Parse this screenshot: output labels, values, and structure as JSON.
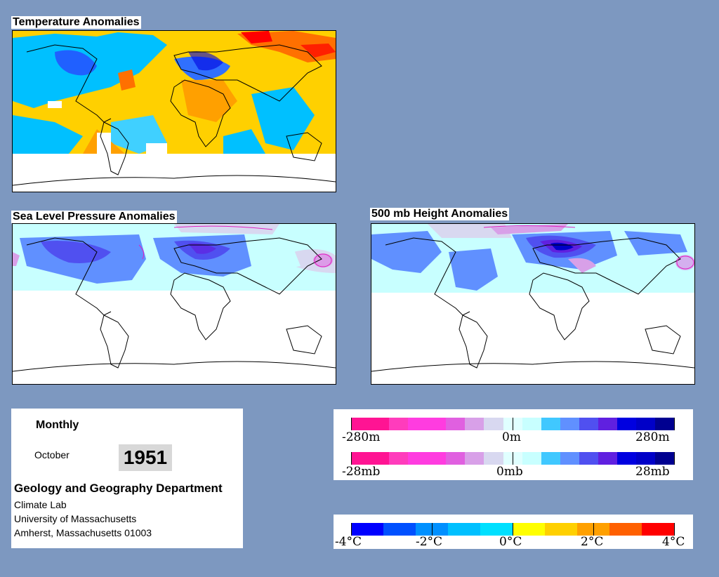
{
  "maps": {
    "temperature": {
      "title": "Temperature Anomalies"
    },
    "slp": {
      "title": "Sea Level Pressure Anomalies"
    },
    "h500": {
      "title": "500 mb Height Anomalies"
    }
  },
  "info": {
    "period": "Monthly",
    "month": "October",
    "year": "1951",
    "department": "Geology and Geography Department",
    "lab": "Climate Lab",
    "university": "University of Massachusetts",
    "address": "Amherst, Massachusetts 01003"
  },
  "height_scale": {
    "colors": [
      "#ff1493",
      "#ff1493",
      "#ff3cbc",
      "#ff3ce0",
      "#ff3ce0",
      "#e060e0",
      "#d8a0e8",
      "#d8d8f0",
      "#e0ffff",
      "#c8ffff",
      "#40c8ff",
      "#6090ff",
      "#5050f0",
      "#6020e0",
      "#0000e0",
      "#0000c8",
      "#000090"
    ],
    "labels": [
      "-280m",
      "0m",
      "280m"
    ]
  },
  "pressure_scale": {
    "colors": [
      "#ff1493",
      "#ff1493",
      "#ff3cbc",
      "#ff3ce0",
      "#ff3ce0",
      "#e060e0",
      "#d8a0e8",
      "#d8d8f0",
      "#e0ffff",
      "#c8ffff",
      "#40c8ff",
      "#6090ff",
      "#5050f0",
      "#6020e0",
      "#0000e0",
      "#0000c8",
      "#000090"
    ],
    "labels": [
      "-28mb",
      "0mb",
      "28mb"
    ]
  },
  "temp_scale": {
    "colors": [
      "#0000ff",
      "#0050ff",
      "#0090ff",
      "#00c0ff",
      "#00e0ff",
      "#ffff00",
      "#ffd000",
      "#ffa000",
      "#ff6000",
      "#ff0000"
    ],
    "labels": [
      "-4°C",
      "-2°C",
      "0°C",
      "2°C",
      "4°C"
    ]
  }
}
